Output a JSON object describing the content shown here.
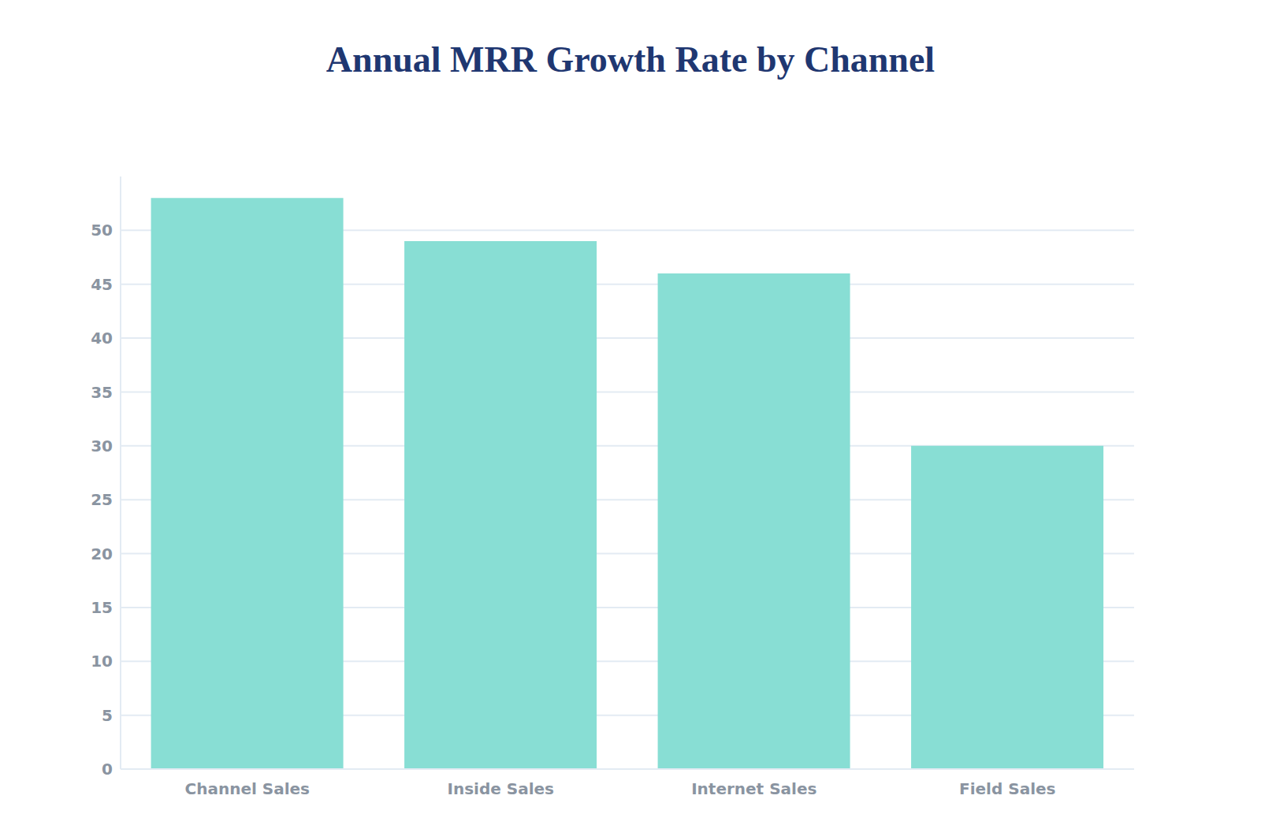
{
  "chart_data": {
    "type": "bar",
    "title": "Annual MRR Growth Rate by Channel",
    "categories": [
      "Channel Sales",
      "Inside Sales",
      "Internet Sales",
      "Field Sales"
    ],
    "values": [
      53,
      49,
      46,
      30
    ],
    "color": "#88ded4",
    "ylim": [
      0,
      55
    ],
    "yticks": [
      0,
      5,
      10,
      15,
      20,
      25,
      30,
      35,
      40,
      45,
      50
    ],
    "grid": true
  }
}
